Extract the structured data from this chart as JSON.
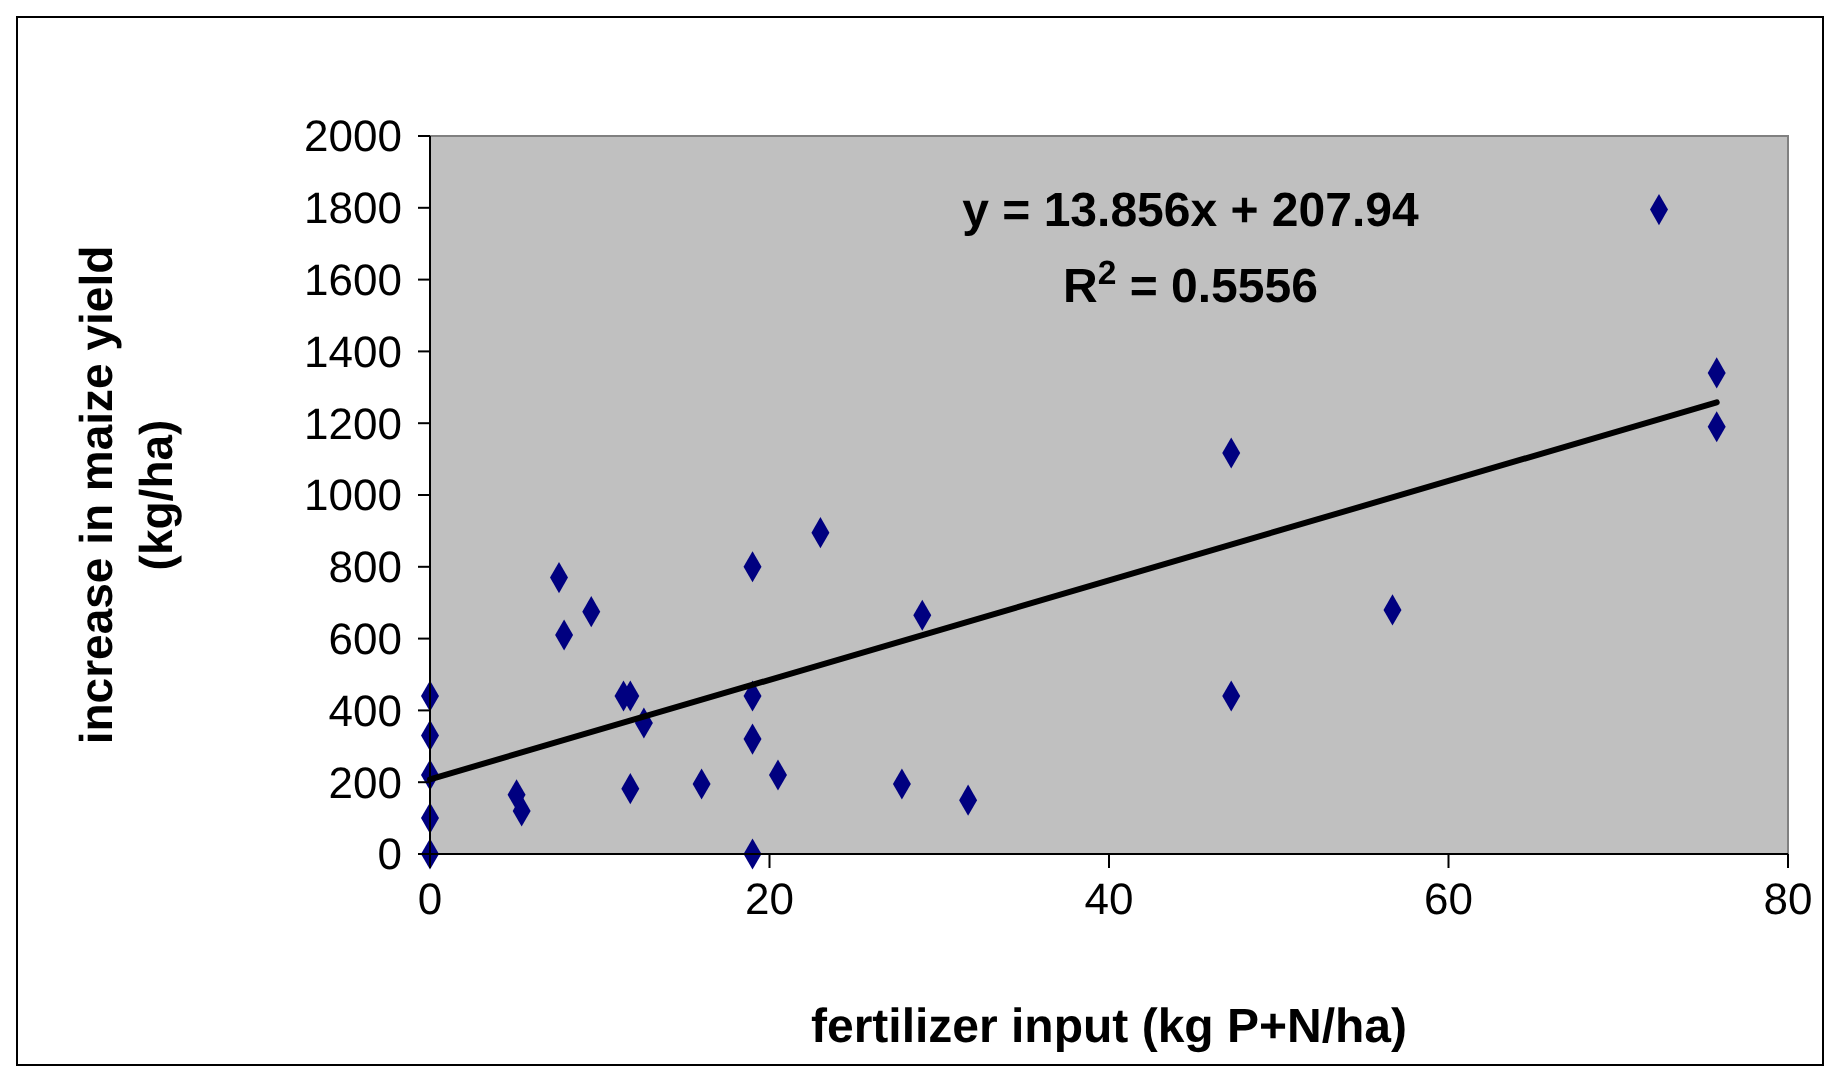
{
  "chart_data": {
    "type": "scatter",
    "xlabel": "fertilizer input (kg P+N/ha)",
    "ylabel": "increase in maize yield (kg/ha)",
    "xlim": [
      0,
      80
    ],
    "xticks": [
      0,
      20,
      40,
      60,
      80
    ],
    "ylim": [
      0,
      2000
    ],
    "yticks": [
      0,
      200,
      400,
      600,
      800,
      1000,
      1200,
      1400,
      1600,
      1800,
      2000
    ],
    "grid": false,
    "marker": "diamond",
    "annotations": [
      "y = 13.856x + 207.94",
      "R$^{2}$ = 0.5556"
    ],
    "series": [
      {
        "color": "#000080",
        "x": [
          0,
          0,
          0,
          0,
          0,
          5.1,
          5.4,
          7.6,
          7.9,
          9.5,
          11.4,
          11.8,
          12.6,
          11.8,
          16,
          19,
          19,
          19,
          19,
          20.5,
          23,
          29,
          27.8,
          31.7,
          47.2,
          47.2,
          56.7,
          72.4,
          75.8,
          75.8
        ],
        "values": [
          0,
          100,
          220,
          330,
          440,
          165,
          120,
          770,
          610,
          675,
          440,
          440,
          365,
          182,
          195,
          800,
          440,
          320,
          0,
          220,
          895,
          665,
          195,
          150,
          1117,
          440,
          680,
          1795,
          1340,
          1190
        ]
      },
      {
        "type": "line",
        "color": "#000000",
        "marker": "none",
        "x": [
          0,
          75.8
        ],
        "values": [
          208,
          1258
        ]
      }
    ]
  }
}
